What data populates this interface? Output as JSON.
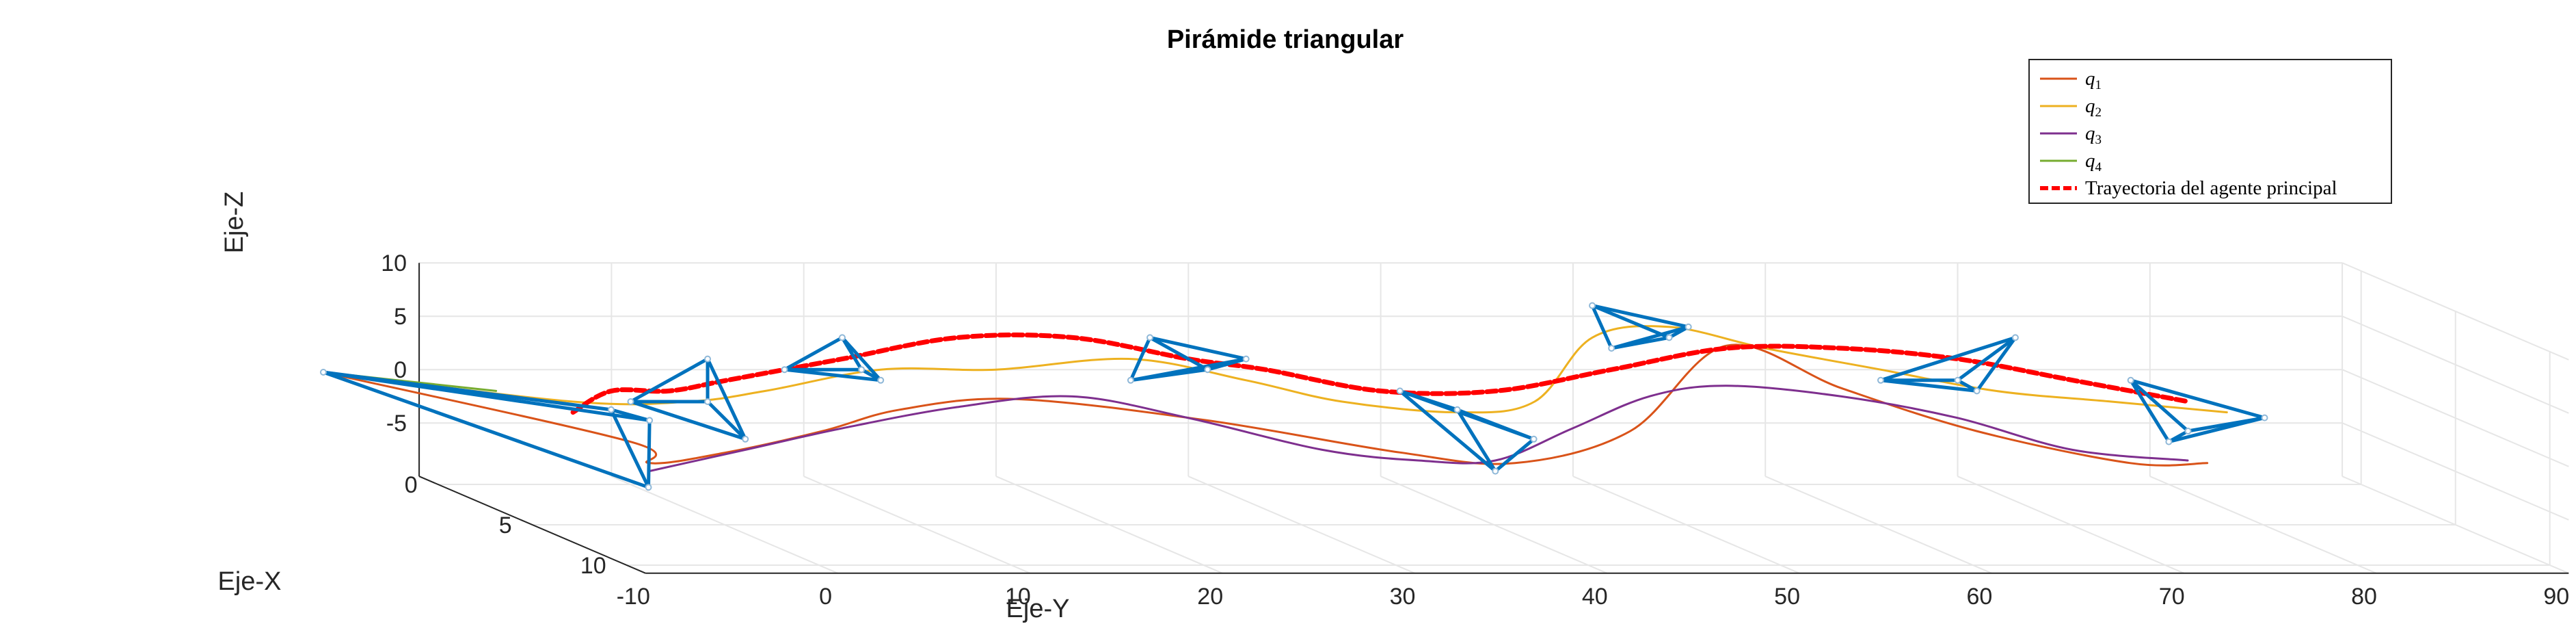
{
  "chart_data": {
    "type": "line",
    "title": "Pirámide triangular",
    "xlabel": "Eje-X",
    "ylabel": "Eje-Y",
    "zlabel": "Eje-Z",
    "x_ticks": [
      "0",
      "5",
      "10"
    ],
    "y_ticks": [
      "-10",
      "0",
      "10",
      "20",
      "30",
      "40",
      "50",
      "60",
      "70",
      "80",
      "90"
    ],
    "z_ticks": [
      "10",
      "5",
      "0",
      "-5"
    ],
    "xlim": [
      -1,
      11
    ],
    "ylim": [
      -10,
      90
    ],
    "zlim": [
      -10,
      10
    ],
    "grid": true,
    "legend_position": "top-right",
    "legend": {
      "entries": [
        {
          "base": "q",
          "sub": "1",
          "color": "#D95319",
          "dashed": false
        },
        {
          "base": "q",
          "sub": "2",
          "color": "#EDB120",
          "dashed": false
        },
        {
          "base": "q",
          "sub": "3",
          "color": "#7E2F8E",
          "dashed": false
        },
        {
          "base": "q",
          "sub": "4",
          "color": "#77AC30",
          "dashed": false
        },
        {
          "base": "Trayectoria del agente principal",
          "sub": "",
          "color": "#FF0000",
          "dashed": true
        }
      ]
    },
    "pyramid_color": "#0072BD",
    "series": [
      {
        "name": "q1",
        "color": "#D95319",
        "dash": false,
        "points": [
          [
            -2,
            -14,
            -1
          ],
          [
            0,
            0,
            -6
          ],
          [
            0,
            1,
            -8
          ],
          [
            0,
            5,
            -7
          ],
          [
            0,
            10,
            -5
          ],
          [
            0,
            14,
            -3
          ],
          [
            0,
            20,
            -2
          ],
          [
            0,
            30,
            -4
          ],
          [
            0,
            40,
            -7
          ],
          [
            0,
            46,
            -8
          ],
          [
            0,
            52,
            -5
          ],
          [
            0,
            57,
            3
          ],
          [
            0,
            63,
            -1
          ],
          [
            0,
            70,
            -5
          ],
          [
            0,
            78,
            -8
          ],
          [
            0,
            82,
            -8
          ]
        ]
      },
      {
        "name": "q2",
        "color": "#EDB120",
        "dash": false,
        "points": [
          [
            -2,
            -14,
            -1
          ],
          [
            -1,
            -2,
            -3
          ],
          [
            -1,
            4,
            -3
          ],
          [
            -1,
            8,
            -2
          ],
          [
            -1,
            14,
            0
          ],
          [
            -1,
            20,
            0
          ],
          [
            -1,
            27,
            1
          ],
          [
            -1,
            33,
            -1
          ],
          [
            -1,
            38,
            -3
          ],
          [
            -1,
            44,
            -4
          ],
          [
            -1,
            48,
            -3
          ],
          [
            -1,
            51,
            3
          ],
          [
            -1,
            55,
            4
          ],
          [
            -1,
            60,
            2
          ],
          [
            -1,
            66,
            0
          ],
          [
            -1,
            72,
            -2
          ],
          [
            -1,
            78,
            -3
          ],
          [
            -1,
            84,
            -4
          ]
        ]
      },
      {
        "name": "q3",
        "color": "#7E2F8E",
        "dash": false,
        "points": [
          [
            1,
            0,
            -8
          ],
          [
            1,
            5,
            -6
          ],
          [
            1,
            10,
            -4
          ],
          [
            1,
            16,
            -2
          ],
          [
            1,
            22,
            -1
          ],
          [
            1,
            28,
            -3
          ],
          [
            1,
            35,
            -6
          ],
          [
            1,
            40,
            -7
          ],
          [
            1,
            44,
            -7
          ],
          [
            1,
            48,
            -4
          ],
          [
            1,
            52,
            -1
          ],
          [
            1,
            56,
            0
          ],
          [
            1,
            62,
            -1
          ],
          [
            1,
            68,
            -3
          ],
          [
            1,
            74,
            -6
          ],
          [
            1,
            80,
            -7
          ]
        ]
      },
      {
        "name": "q4",
        "color": "#77AC30",
        "dash": false,
        "points": [
          [
            -2,
            -14,
            -1
          ],
          [
            -1,
            -6,
            -2
          ]
        ]
      },
      {
        "name": "Trayectoria del agente principal",
        "color": "#FF0000",
        "dash": true,
        "points": [
          [
            -1,
            -2,
            -4
          ],
          [
            -1,
            0,
            -2
          ],
          [
            -1,
            3,
            -2
          ],
          [
            -1,
            6,
            -1
          ],
          [
            -1,
            12,
            1
          ],
          [
            -1,
            18,
            3
          ],
          [
            -1,
            24,
            3
          ],
          [
            -1,
            30,
            1
          ],
          [
            -1,
            34,
            0
          ],
          [
            -1,
            40,
            -2
          ],
          [
            -1,
            46,
            -2
          ],
          [
            -1,
            52,
            0
          ],
          [
            -1,
            58,
            2
          ],
          [
            -1,
            64,
            2
          ],
          [
            -1,
            70,
            1
          ],
          [
            -1,
            76,
            -1
          ],
          [
            -1,
            82,
            -3
          ]
        ]
      }
    ],
    "pyramids": [
      {
        "apex": [
          -2,
          -14,
          -1
        ],
        "base": [
          [
            0,
            -1,
            -3
          ],
          [
            3,
            -2,
            -8
          ],
          [
            0,
            1,
            -4
          ]
        ]
      },
      {
        "apex": [
          -1,
          5,
          1
        ],
        "base": [
          [
            -1,
            1,
            -3
          ],
          [
            -1,
            5,
            -3
          ],
          [
            1,
            5,
            -5
          ]
        ]
      },
      {
        "apex": [
          -1,
          12,
          3
        ],
        "base": [
          [
            -1,
            9,
            0
          ],
          [
            -1,
            13,
            0
          ],
          [
            -1,
            14,
            -1
          ]
        ]
      },
      {
        "apex": [
          -1,
          28,
          3
        ],
        "base": [
          [
            -1,
            27,
            -1
          ],
          [
            -1,
            31,
            0
          ],
          [
            -1,
            33,
            1
          ]
        ]
      },
      {
        "apex": [
          -1,
          41,
          -2
        ],
        "base": [
          [
            0,
            43,
            -3
          ],
          [
            1,
            44,
            -8
          ],
          [
            1,
            46,
            -5
          ]
        ]
      },
      {
        "apex": [
          -1,
          51,
          6
        ],
        "base": [
          [
            -1,
            52,
            2
          ],
          [
            -1,
            55,
            3
          ],
          [
            -1,
            56,
            4
          ]
        ]
      },
      {
        "apex": [
          -1,
          73,
          3
        ],
        "base": [
          [
            -1,
            66,
            -1
          ],
          [
            -1,
            70,
            -1
          ],
          [
            -1,
            71,
            -2
          ]
        ]
      },
      {
        "apex": [
          -1,
          79,
          -1
        ],
        "base": [
          [
            0,
            80,
            -6
          ],
          [
            0,
            81,
            -5
          ],
          [
            1,
            84,
            -3
          ]
        ]
      }
    ]
  }
}
